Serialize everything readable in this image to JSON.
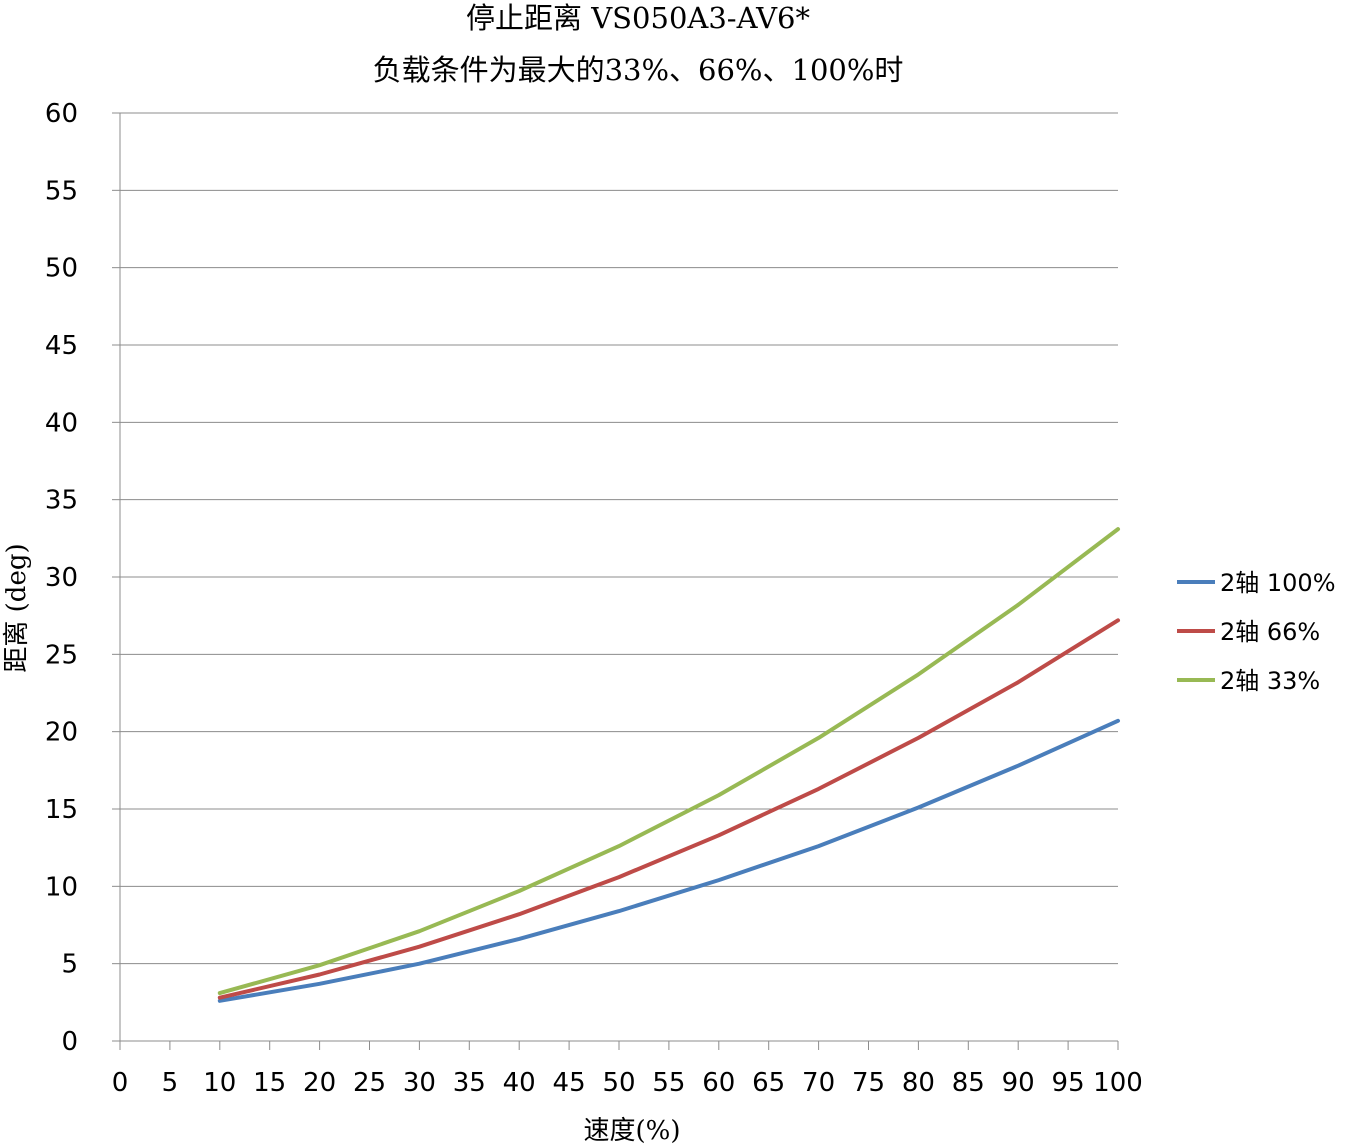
{
  "chart_data": {
    "type": "line",
    "title": "停止距离 VS050A3-AV6*",
    "subtitle": "负载条件为最大的33%、66%、100%时",
    "xlabel": "速度(%)",
    "ylabel": "距离 (deg)",
    "xlim": [
      0,
      100
    ],
    "ylim": [
      0,
      60
    ],
    "x_ticks": [
      "0",
      "5",
      "10",
      "15",
      "20",
      "25",
      "30",
      "35",
      "40",
      "45",
      "50",
      "55",
      "60",
      "65",
      "70",
      "75",
      "80",
      "85",
      "90",
      "95",
      "100"
    ],
    "y_ticks": [
      "0",
      "5",
      "10",
      "15",
      "20",
      "25",
      "30",
      "35",
      "40",
      "45",
      "50",
      "55",
      "60"
    ],
    "grid": "horizontal",
    "legend_position": "right",
    "x": [
      10,
      20,
      30,
      40,
      50,
      60,
      70,
      80,
      90,
      100
    ],
    "series": [
      {
        "name": "2轴 100%",
        "color": "#4a7ebb",
        "values": [
          2.6,
          3.7,
          5.0,
          6.6,
          8.4,
          10.4,
          12.6,
          15.1,
          17.8,
          20.7
        ]
      },
      {
        "name": "2轴 66%",
        "color": "#be4b48",
        "values": [
          2.8,
          4.3,
          6.1,
          8.2,
          10.6,
          13.3,
          16.3,
          19.6,
          23.2,
          27.2
        ]
      },
      {
        "name": "2轴 33%",
        "color": "#98b954",
        "values": [
          3.1,
          4.9,
          7.1,
          9.7,
          12.6,
          15.9,
          19.6,
          23.7,
          28.2,
          33.1
        ]
      }
    ]
  }
}
